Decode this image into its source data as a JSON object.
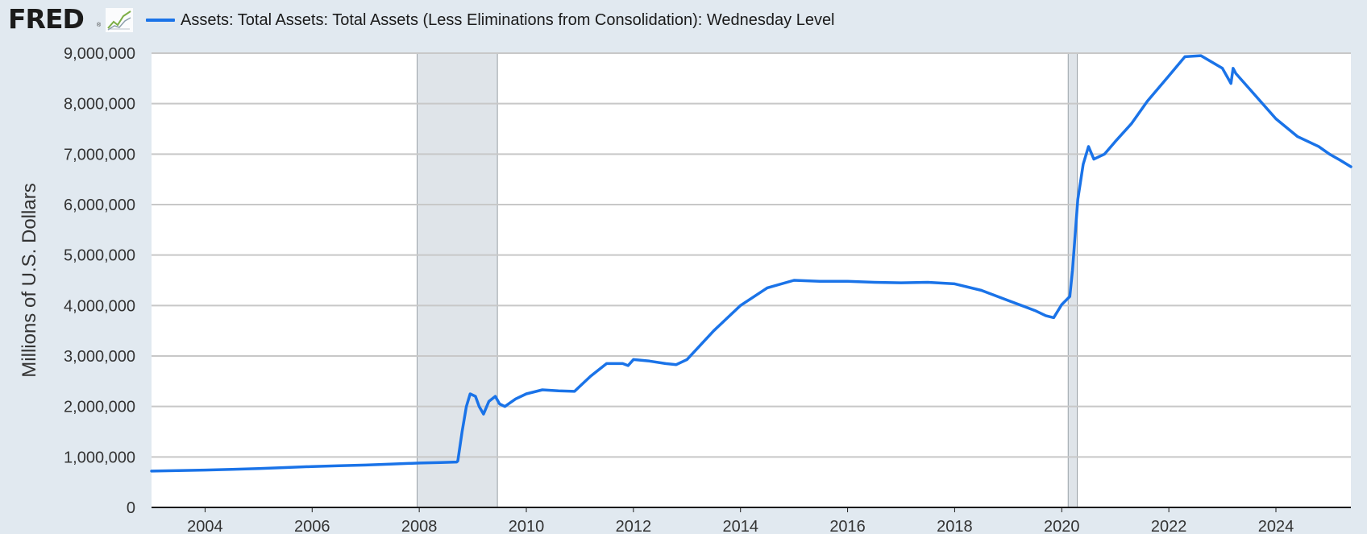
{
  "brand": {
    "logo_text": "FRED",
    "registered_mark": "®",
    "logo_icon": "line-chart-icon"
  },
  "colors": {
    "series": "#1a73e8",
    "background": "#e1e9f0",
    "plot_bg": "#ffffff",
    "recession": "#dfe4e9",
    "grid": "#c8c8c8"
  },
  "legend": {
    "label": "Assets: Total Assets: Total Assets (Less Eliminations from Consolidation): Wednesday Level"
  },
  "chart_data": {
    "type": "line",
    "title": "Assets: Total Assets: Total Assets (Less Eliminations from Consolidation): Wednesday Level",
    "xlabel": "",
    "ylabel": "Millions of U.S. Dollars",
    "xlim": [
      2003.0,
      2025.4
    ],
    "ylim": [
      0,
      9000000
    ],
    "grid": true,
    "y_ticks": [
      0,
      1000000,
      2000000,
      3000000,
      4000000,
      5000000,
      6000000,
      7000000,
      8000000,
      9000000
    ],
    "y_tick_labels": [
      "0",
      "1,000,000",
      "2,000,000",
      "3,000,000",
      "4,000,000",
      "5,000,000",
      "6,000,000",
      "7,000,000",
      "8,000,000",
      "9,000,000"
    ],
    "x_ticks": [
      2004,
      2006,
      2008,
      2010,
      2012,
      2014,
      2016,
      2018,
      2020,
      2022,
      2024
    ],
    "x_tick_labels": [
      "2004",
      "2006",
      "2008",
      "2010",
      "2012",
      "2014",
      "2016",
      "2018",
      "2020",
      "2022",
      "2024"
    ],
    "recessions": [
      {
        "start": 2007.96,
        "end": 2009.46
      },
      {
        "start": 2020.12,
        "end": 2020.29
      }
    ],
    "series": [
      {
        "name": "Assets: Total Assets: Total Assets (Less Eliminations from Consolidation): Wednesday Level",
        "x": [
          2003.0,
          2003.5,
          2004.0,
          2004.5,
          2005.0,
          2005.5,
          2006.0,
          2006.5,
          2007.0,
          2007.5,
          2008.0,
          2008.4,
          2008.7,
          2008.72,
          2008.8,
          2008.88,
          2008.95,
          2009.05,
          2009.12,
          2009.2,
          2009.3,
          2009.42,
          2009.5,
          2009.6,
          2009.8,
          2010.0,
          2010.3,
          2010.6,
          2010.9,
          2011.0,
          2011.2,
          2011.5,
          2011.8,
          2011.9,
          2012.0,
          2012.3,
          2012.6,
          2012.8,
          2013.0,
          2013.5,
          2014.0,
          2014.5,
          2015.0,
          2015.5,
          2016.0,
          2016.5,
          2017.0,
          2017.5,
          2018.0,
          2018.5,
          2019.0,
          2019.5,
          2019.7,
          2019.85,
          2020.0,
          2020.15,
          2020.2,
          2020.3,
          2020.4,
          2020.5,
          2020.6,
          2020.8,
          2021.0,
          2021.3,
          2021.6,
          2022.0,
          2022.3,
          2022.6,
          2023.0,
          2023.16,
          2023.2,
          2023.25,
          2023.5,
          2024.0,
          2024.4,
          2024.8,
          2025.0,
          2025.2,
          2025.4
        ],
        "values": [
          720000,
          730000,
          740000,
          755000,
          770000,
          790000,
          810000,
          825000,
          840000,
          860000,
          880000,
          890000,
          900000,
          920000,
          1500000,
          2000000,
          2250000,
          2200000,
          2000000,
          1850000,
          2100000,
          2200000,
          2050000,
          2000000,
          2150000,
          2250000,
          2330000,
          2310000,
          2300000,
          2400000,
          2600000,
          2850000,
          2850000,
          2810000,
          2930000,
          2900000,
          2850000,
          2830000,
          2930000,
          3500000,
          4000000,
          4350000,
          4500000,
          4480000,
          4480000,
          4460000,
          4450000,
          4460000,
          4430000,
          4300000,
          4100000,
          3900000,
          3800000,
          3760000,
          4020000,
          4180000,
          4700000,
          6100000,
          6800000,
          7150000,
          6900000,
          7000000,
          7250000,
          7600000,
          8050000,
          8550000,
          8930000,
          8950000,
          8700000,
          8400000,
          8700000,
          8600000,
          8300000,
          7700000,
          7350000,
          7150000,
          7000000,
          6880000,
          6750000
        ]
      }
    ]
  }
}
